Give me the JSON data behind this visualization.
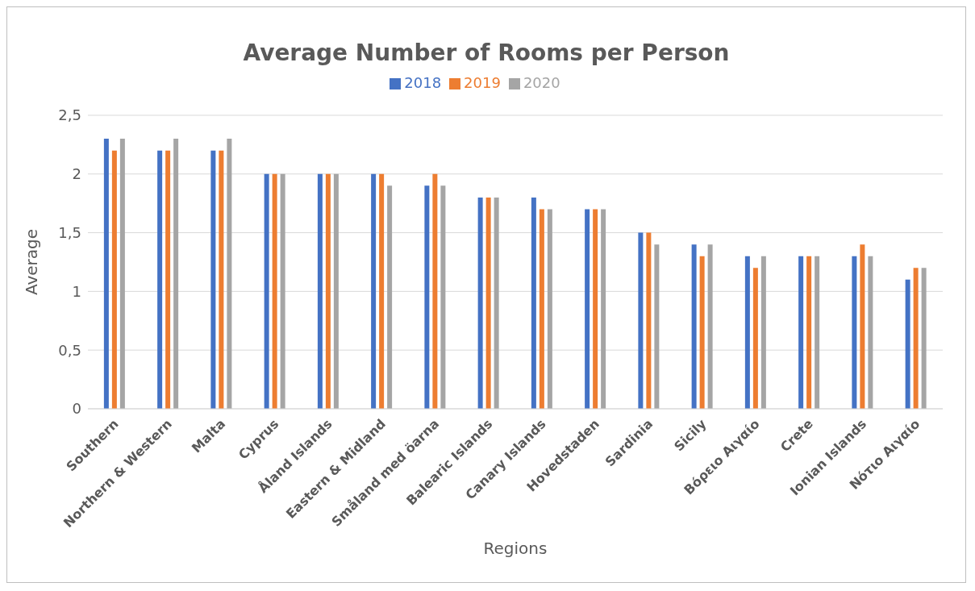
{
  "chart_data": {
    "type": "bar",
    "title": "Average Number of Rooms per Person",
    "xlabel": "Regions",
    "ylabel": "Average",
    "categories": [
      "Southern",
      "Northern & Western",
      "Malta",
      "Cyprus",
      "Åland Islands",
      "Eastern & Midland",
      "Småland med öarna",
      "Balearic Islands",
      "Canary Islands",
      "Hovedstaden",
      "Sardinia",
      "Sicily",
      "Βόρειο Αιγαίο",
      "Crete",
      "Ionian Islands",
      "Νότιο Αιγαίο"
    ],
    "series": [
      {
        "name": "2018",
        "color": "#4472c4",
        "values": [
          2.3,
          2.2,
          2.2,
          2.0,
          2.0,
          2.0,
          1.9,
          1.8,
          1.8,
          1.7,
          1.5,
          1.4,
          1.3,
          1.3,
          1.3,
          1.1
        ]
      },
      {
        "name": "2019",
        "color": "#ed7d31",
        "values": [
          2.2,
          2.2,
          2.2,
          2.0,
          2.0,
          2.0,
          2.0,
          1.8,
          1.7,
          1.7,
          1.5,
          1.3,
          1.2,
          1.3,
          1.4,
          1.2
        ]
      },
      {
        "name": "2020",
        "color": "#a5a5a5",
        "values": [
          2.3,
          2.3,
          2.3,
          2.0,
          2.0,
          1.9,
          1.9,
          1.8,
          1.7,
          1.7,
          1.4,
          1.4,
          1.3,
          1.3,
          1.3,
          1.2
        ]
      }
    ],
    "ylim": [
      0,
      2.5
    ],
    "yticks": [
      0,
      {
        "value": 0.5,
        "label": "0,5"
      },
      1,
      {
        "value": 1.5,
        "label": "1,5"
      },
      2,
      {
        "value": 2.5,
        "label": "2,5"
      }
    ],
    "grid": "y",
    "legend": "top"
  }
}
